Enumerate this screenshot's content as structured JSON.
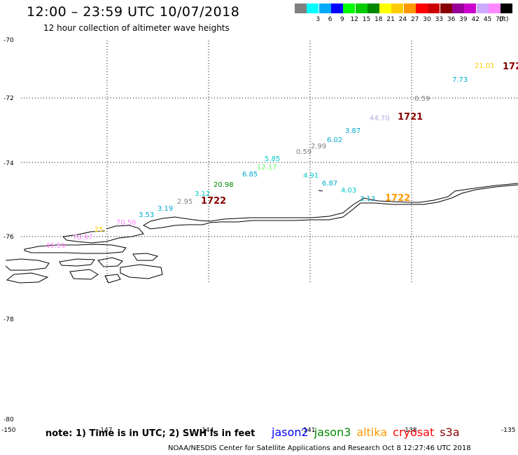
{
  "header": {
    "title": "12:00 – 23:59 UTC 10/07/2018",
    "subtitle": "12 hour collection of altimeter wave heights"
  },
  "legend": {
    "unit": "(ft)",
    "items": [
      {
        "label": "",
        "color": "#808080"
      },
      {
        "label": "3",
        "color": "#00ffff"
      },
      {
        "label": "6",
        "color": "#00aaff"
      },
      {
        "label": "9",
        "color": "#0000ff"
      },
      {
        "label": "12",
        "color": "#00ff00"
      },
      {
        "label": "15",
        "color": "#00cc00"
      },
      {
        "label": "18",
        "color": "#008800"
      },
      {
        "label": "21",
        "color": "#ffff00"
      },
      {
        "label": "24",
        "color": "#ffcc00"
      },
      {
        "label": "27",
        "color": "#ff9900"
      },
      {
        "label": "30",
        "color": "#ff0000"
      },
      {
        "label": "33",
        "color": "#cc0000"
      },
      {
        "label": "36",
        "color": "#880000"
      },
      {
        "label": "39",
        "color": "#990099"
      },
      {
        "label": "42",
        "color": "#cc00cc"
      },
      {
        "label": "45",
        "color": "#ccaaff"
      },
      {
        "label": "70",
        "color": "#ff88ff"
      },
      {
        "label": "",
        "color": "#000000"
      }
    ]
  },
  "axes": {
    "latitudes": [
      "-70",
      "-72",
      "-74",
      "-76",
      "-78",
      "-80"
    ],
    "longitudes": [
      "-150",
      "-147",
      "-144",
      "-141",
      "-138",
      "-135"
    ]
  },
  "observations": [
    {
      "text": "21.01",
      "color": "#ffcc00"
    },
    {
      "text": "172",
      "color": "#880000",
      "big": true
    },
    {
      "text": "7.73",
      "color": "#00aacc"
    },
    {
      "text": "0.59",
      "color": "#808080"
    },
    {
      "text": "44.70",
      "color": "#bbaadd"
    },
    {
      "text": "1721",
      "color": "#880000",
      "big": true
    },
    {
      "text": "3.87",
      "color": "#00aacc"
    },
    {
      "text": "6.02",
      "color": "#00aacc"
    },
    {
      "text": "2.99",
      "color": "#808080"
    },
    {
      "text": "0.59",
      "color": "#808080"
    },
    {
      "text": "5.85",
      "color": "#00cccc"
    },
    {
      "text": "12.17",
      "color": "#66ff66"
    },
    {
      "text": "6.85",
      "color": "#00aacc"
    },
    {
      "text": "4.91",
      "color": "#00cccc"
    },
    {
      "text": "6.87",
      "color": "#00aacc"
    },
    {
      "text": "20.98",
      "color": "#008800"
    },
    {
      "text": "4.03",
      "color": "#00cccc"
    },
    {
      "text": "3.13",
      "color": "#00aacc"
    },
    {
      "text": "1722",
      "color": "#ff9900",
      "big": true
    },
    {
      "text": "3.12",
      "color": "#00cccc"
    },
    {
      "text": "2.95",
      "color": "#808080"
    },
    {
      "text": "1722",
      "color": "#880000",
      "big": true
    },
    {
      "text": "3.19",
      "color": "#00aacc"
    },
    {
      "text": "3.53",
      "color": "#00aacc"
    },
    {
      "text": "70.56",
      "color": "#ff88ff"
    },
    {
      "text": "25.",
      "color": "#ffcc00"
    },
    {
      "text": "70.97",
      "color": "#ff88ff"
    },
    {
      "text": "45.59",
      "color": "#ff88ff"
    }
  ],
  "note": "note: 1) Time is in UTC; 2) SWH is in feet",
  "satellites": [
    {
      "name": "jason2",
      "color": "#0000ff"
    },
    {
      "name": "jason3",
      "color": "#008800"
    },
    {
      "name": "altika",
      "color": "#ff9900"
    },
    {
      "name": "cryosat",
      "color": "#ff0000"
    },
    {
      "name": "s3a",
      "color": "#880000"
    }
  ],
  "credit": "NOAA/NESDIS Center for Satellite Applications and Research    Oct  8 12:27:46 UTC 2018"
}
